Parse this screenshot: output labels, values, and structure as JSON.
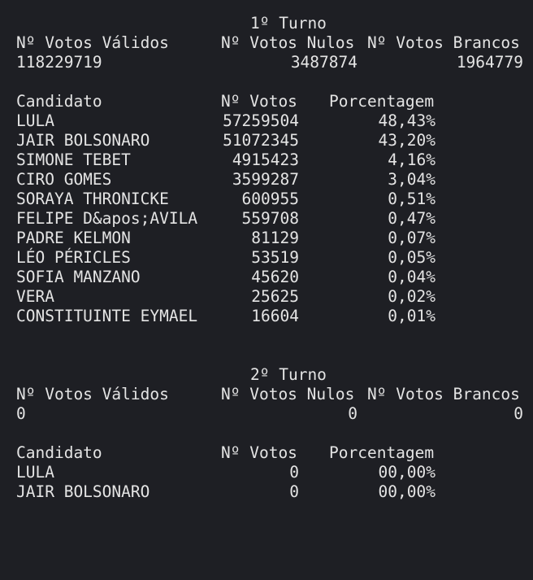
{
  "turno1": {
    "title": "1º Turno",
    "headers": {
      "validos": "Nº Votos Válidos",
      "nulos": "Nº Votos Nulos",
      "brancos": "Nº Votos Brancos"
    },
    "totals": {
      "validos": "118229719",
      "nulos": "3487874",
      "brancos": "1964779"
    },
    "table_headers": {
      "candidato": "Candidato",
      "votos": "Nº Votos",
      "porcentagem": "Porcentagem"
    },
    "rows": [
      {
        "candidato": "LULA",
        "votos": "57259504",
        "porcentagem": "48,43%"
      },
      {
        "candidato": "JAIR BOLSONARO",
        "votos": "51072345",
        "porcentagem": "43,20%"
      },
      {
        "candidato": "SIMONE TEBET",
        "votos": "4915423",
        "porcentagem": "4,16%"
      },
      {
        "candidato": "CIRO GOMES",
        "votos": "3599287",
        "porcentagem": "3,04%"
      },
      {
        "candidato": "SORAYA THRONICKE",
        "votos": "600955",
        "porcentagem": "0,51%"
      },
      {
        "candidato": "FELIPE D&apos;AVILA",
        "votos": "559708",
        "porcentagem": "0,47%"
      },
      {
        "candidato": "PADRE KELMON",
        "votos": "81129",
        "porcentagem": "0,07%"
      },
      {
        "candidato": "LÉO PÉRICLES",
        "votos": "53519",
        "porcentagem": "0,05%"
      },
      {
        "candidato": "SOFIA MANZANO",
        "votos": "45620",
        "porcentagem": "0,04%"
      },
      {
        "candidato": "VERA",
        "votos": "25625",
        "porcentagem": "0,02%"
      },
      {
        "candidato": "CONSTITUINTE EYMAEL",
        "votos": "16604",
        "porcentagem": "0,01%"
      }
    ]
  },
  "turno2": {
    "title": "2º Turno",
    "headers": {
      "validos": "Nº Votos Válidos",
      "nulos": "Nº Votos Nulos",
      "brancos": "Nº Votos Brancos"
    },
    "totals": {
      "validos": "0",
      "nulos": "0",
      "brancos": "0"
    },
    "table_headers": {
      "candidato": "Candidato",
      "votos": "Nº Votos",
      "porcentagem": "Porcentagem"
    },
    "rows": [
      {
        "candidato": "LULA",
        "votos": "0",
        "porcentagem": "00,00%"
      },
      {
        "candidato": "JAIR BOLSONARO",
        "votos": "0",
        "porcentagem": "00,00%"
      }
    ]
  }
}
